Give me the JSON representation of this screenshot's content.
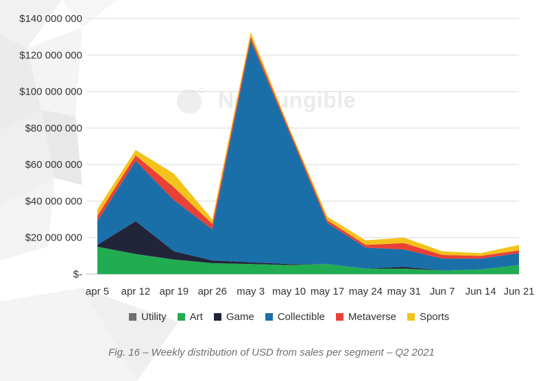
{
  "watermark_text": "NonFungible",
  "caption": "Fig. 16 – Weekly distribution of USD from sales per segment – Q2 2021",
  "colors": {
    "Utility": "#6d6e70",
    "Art": "#22ac52",
    "Game": "#22253a",
    "Collectible": "#1b6fa9",
    "Metaverse": "#e94136",
    "Sports": "#f3c31b"
  },
  "chart_data": {
    "type": "area",
    "stacked": true,
    "categories": [
      "apr 5",
      "apr 12",
      "apr 19",
      "apr 26",
      "may 3",
      "may 10",
      "may 17",
      "may 24",
      "may 31",
      "Jun 7",
      "Jun 14",
      "Jun 21"
    ],
    "y_ticks": [
      0,
      20000000,
      40000000,
      60000000,
      80000000,
      100000000,
      120000000,
      140000000
    ],
    "y_tick_labels": [
      "$-",
      "$20 000 000",
      "$40 000 000",
      "$60 000 000",
      "$80 000 000",
      "$100 000 000",
      "$120 000 000",
      "$140 000 000"
    ],
    "ylim": [
      0,
      140000000
    ],
    "grid": true,
    "legend_position": "bottom",
    "series": [
      {
        "name": "Utility",
        "values": [
          0,
          0,
          0,
          0,
          0,
          0,
          0,
          0,
          0,
          0,
          0,
          0
        ]
      },
      {
        "name": "Art",
        "values": [
          15000000,
          11000000,
          8000000,
          6000000,
          5500000,
          5000000,
          5500000,
          3000000,
          3000000,
          2000000,
          2500000,
          5000000
        ]
      },
      {
        "name": "Game",
        "values": [
          1000000,
          18000000,
          4500000,
          1500000,
          1000000,
          500000,
          0,
          0,
          1000000,
          0,
          0,
          0
        ]
      },
      {
        "name": "Collectible",
        "values": [
          13000000,
          33000000,
          28000000,
          17000000,
          121500000,
          72500000,
          22500000,
          11500000,
          9500000,
          6500000,
          6000000,
          6500000
        ]
      },
      {
        "name": "Metaverse",
        "values": [
          3000000,
          3000000,
          7000000,
          3000000,
          2000000,
          1500000,
          1500000,
          1500000,
          3500000,
          2000000,
          1500000,
          1500000
        ]
      },
      {
        "name": "Sports",
        "values": [
          3500000,
          3000000,
          7500000,
          2500000,
          2500000,
          1000000,
          2000000,
          2500000,
          3000000,
          2000000,
          1500000,
          3000000
        ]
      }
    ]
  }
}
